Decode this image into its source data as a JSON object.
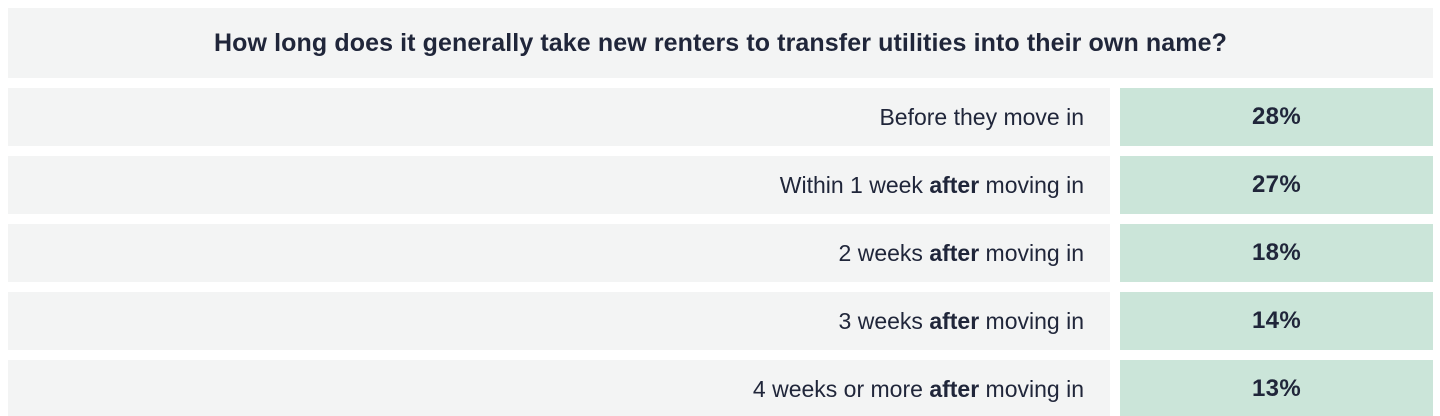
{
  "table": {
    "title": "How long does it generally take new renters to transfer utilities into their own name?",
    "rows": [
      {
        "label_prefix": "Before they move in",
        "label_bold": "",
        "label_suffix": "",
        "value": "28%"
      },
      {
        "label_prefix": "Within 1 week ",
        "label_bold": "after",
        "label_suffix": " moving in",
        "value": "27%"
      },
      {
        "label_prefix": "2 weeks ",
        "label_bold": "after",
        "label_suffix": " moving in",
        "value": "18%"
      },
      {
        "label_prefix": "3 weeks ",
        "label_bold": "after",
        "label_suffix": " moving in",
        "value": "14%"
      },
      {
        "label_prefix": "4 weeks or more ",
        "label_bold": "after",
        "label_suffix": " moving in",
        "value": "13%"
      }
    ]
  },
  "colors": {
    "row_bg": "#f3f4f4",
    "value_bg": "#cbe5d9",
    "text": "#20263a"
  },
  "chart_data": {
    "type": "table",
    "title": "How long does it generally take new renters to transfer utilities into their own name?",
    "categories": [
      "Before they move in",
      "Within 1 week after moving in",
      "2 weeks after moving in",
      "3 weeks after moving in",
      "4 weeks or more after moving in"
    ],
    "values": [
      28,
      27,
      18,
      14,
      13
    ],
    "unit": "%",
    "layout": {
      "value_column": "right",
      "labels_align": "right",
      "emphasized_word": "after",
      "value_cell_color": "#cbe5d9",
      "row_color": "#f3f4f4"
    }
  }
}
